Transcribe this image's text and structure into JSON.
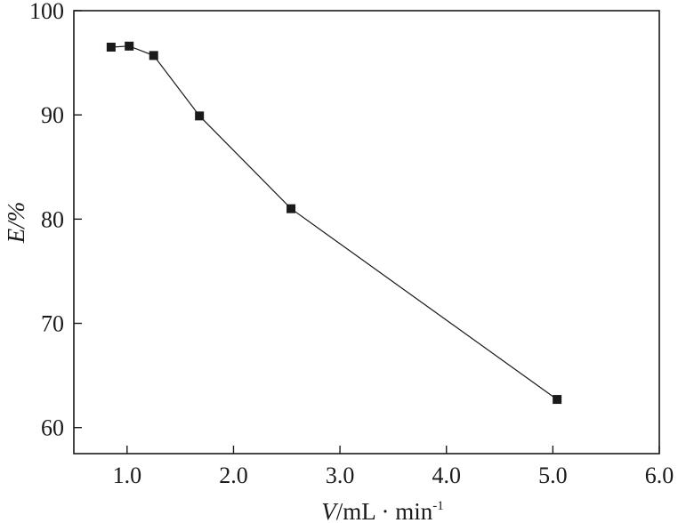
{
  "chart_data": {
    "type": "line",
    "title": "",
    "x": [
      0.85,
      1.02,
      1.25,
      1.68,
      2.54,
      5.04
    ],
    "y": [
      96.5,
      96.6,
      95.7,
      89.9,
      81.0,
      62.7
    ],
    "xlim": [
      0.5,
      6.0
    ],
    "ylim": [
      57.5,
      100
    ],
    "xticks": [
      1.0,
      2.0,
      3.0,
      4.0,
      5.0,
      6.0
    ],
    "xtick_labels": [
      "1.0",
      "2.0",
      "3.0",
      "4.0",
      "5.0",
      "6.0"
    ],
    "yticks": [
      60,
      70,
      80,
      90,
      100
    ],
    "ytick_labels": [
      "60",
      "70",
      "80",
      "90",
      "100"
    ],
    "xlabel": {
      "var": "V",
      "unit": "/mL · min",
      "sup": "-1"
    },
    "ylabel": "E/%",
    "marker": "square",
    "grid": false,
    "colors": {
      "line": "#1a1a1a",
      "marker": "#1a1a1a",
      "axis": "#1a1a1a"
    }
  }
}
